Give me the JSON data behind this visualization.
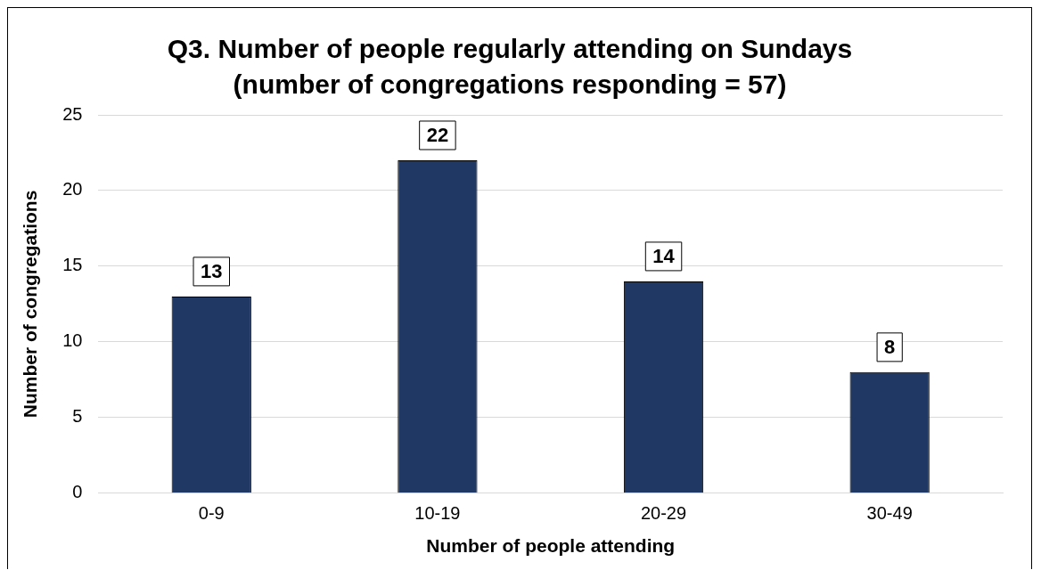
{
  "chart_data": {
    "type": "bar",
    "title": "Q3. Number of people regularly attending on Sundays",
    "subtitle": "(number of congregations responding = 57)",
    "xlabel": "Number of people attending",
    "ylabel": "Number of congregations",
    "categories": [
      "0-9",
      "10-19",
      "20-29",
      "30-49"
    ],
    "values": [
      13,
      22,
      14,
      8
    ],
    "color": "#203864",
    "ylim": [
      0,
      25
    ],
    "yticks": [
      0,
      5,
      10,
      15,
      20,
      25
    ],
    "grid": "y",
    "data_labels": true,
    "legend": false
  }
}
